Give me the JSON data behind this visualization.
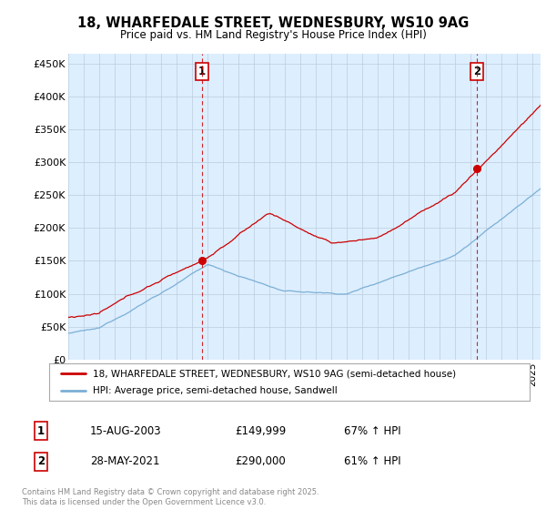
{
  "title": "18, WHARFEDALE STREET, WEDNESBURY, WS10 9AG",
  "subtitle": "Price paid vs. HM Land Registry's House Price Index (HPI)",
  "ylabel_ticks": [
    "£0",
    "£50K",
    "£100K",
    "£150K",
    "£200K",
    "£250K",
    "£300K",
    "£350K",
    "£400K",
    "£450K"
  ],
  "ytick_values": [
    0,
    50000,
    100000,
    150000,
    200000,
    250000,
    300000,
    350000,
    400000,
    450000
  ],
  "ylim": [
    0,
    465000
  ],
  "xlim_start": 1995.0,
  "xlim_end": 2025.5,
  "sale1_year": 2003.62,
  "sale1_price": 149999,
  "sale2_year": 2021.41,
  "sale2_price": 290000,
  "red_color": "#cc0000",
  "blue_color": "#7bafd4",
  "chart_bg": "#ddeeff",
  "vline_color": "#cc0000",
  "legend_label_red": "18, WHARFEDALE STREET, WEDNESBURY, WS10 9AG (semi-detached house)",
  "legend_label_blue": "HPI: Average price, semi-detached house, Sandwell",
  "annotation1_label": "1",
  "annotation1_date": "15-AUG-2003",
  "annotation1_price": "£149,999",
  "annotation1_hpi": "67% ↑ HPI",
  "annotation2_label": "2",
  "annotation2_date": "28-MAY-2021",
  "annotation2_price": "£290,000",
  "annotation2_hpi": "61% ↑ HPI",
  "footer": "Contains HM Land Registry data © Crown copyright and database right 2025.\nThis data is licensed under the Open Government Licence v3.0.",
  "background_color": "#ffffff",
  "grid_color": "#bbccdd"
}
